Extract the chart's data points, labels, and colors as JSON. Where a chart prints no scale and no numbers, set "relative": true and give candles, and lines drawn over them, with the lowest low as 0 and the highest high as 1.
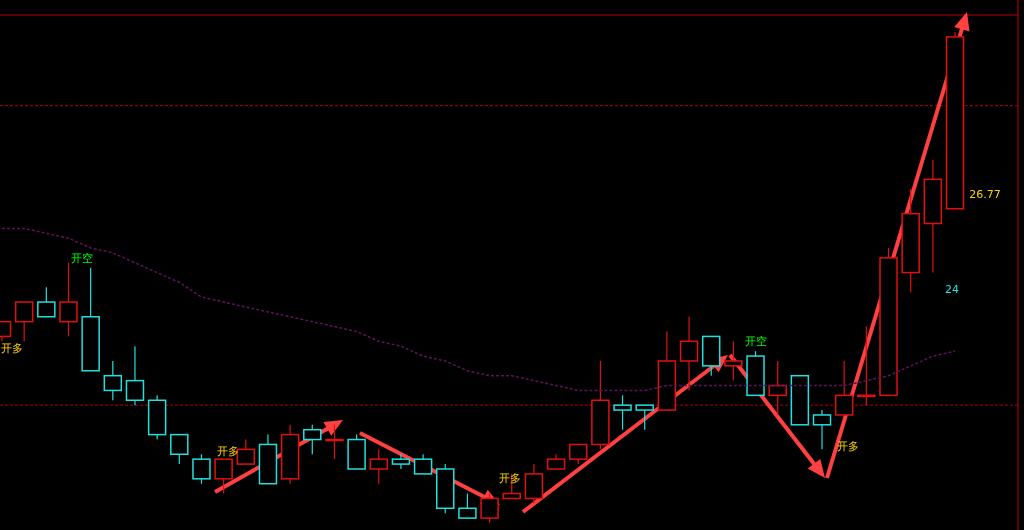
{
  "chart_data": {
    "type": "candlestick",
    "relative": true,
    "categories": [
      null,
      null,
      null,
      null,
      null,
      null,
      null,
      null,
      null,
      null,
      null,
      null,
      null,
      null,
      null,
      null,
      null,
      null,
      null,
      null,
      null,
      null,
      null,
      null,
      null,
      null,
      null,
      null,
      null,
      null,
      null,
      null,
      null,
      null,
      null,
      null,
      null,
      null,
      null,
      null,
      null,
      null,
      null,
      null
    ],
    "ohlc": [
      [
        0.38,
        0.41,
        0.37,
        0.41
      ],
      [
        0.41,
        0.45,
        0.37,
        0.45
      ],
      [
        0.45,
        0.48,
        0.42,
        0.42
      ],
      [
        0.41,
        0.53,
        0.38,
        0.45
      ],
      [
        0.42,
        0.52,
        0.31,
        0.31
      ],
      [
        0.3,
        0.33,
        0.25,
        0.27
      ],
      [
        0.29,
        0.36,
        0.24,
        0.25
      ],
      [
        0.25,
        0.26,
        0.17,
        0.18
      ],
      [
        0.18,
        0.18,
        0.12,
        0.14
      ],
      [
        0.13,
        0.14,
        0.08,
        0.09
      ],
      [
        0.09,
        0.13,
        0.06,
        0.13
      ],
      [
        0.12,
        0.17,
        0.12,
        0.15
      ],
      [
        0.16,
        0.18,
        0.08,
        0.08
      ],
      [
        0.09,
        0.2,
        0.08,
        0.18
      ],
      [
        0.19,
        0.2,
        0.14,
        0.17
      ],
      [
        0.17,
        0.2,
        0.13,
        0.17
      ],
      [
        0.17,
        0.18,
        0.11,
        0.11
      ],
      [
        0.11,
        0.15,
        0.08,
        0.13
      ],
      [
        0.13,
        0.14,
        0.11,
        0.12
      ],
      [
        0.13,
        0.14,
        0.1,
        0.1
      ],
      [
        0.11,
        0.12,
        0.02,
        0.03
      ],
      [
        0.03,
        0.06,
        0.01,
        0.01
      ],
      [
        0.01,
        0.06,
        0.0,
        0.05
      ],
      [
        0.05,
        0.1,
        0.05,
        0.06
      ],
      [
        0.05,
        0.12,
        0.04,
        0.1
      ],
      [
        0.11,
        0.14,
        0.11,
        0.13
      ],
      [
        0.13,
        0.16,
        0.12,
        0.16
      ],
      [
        0.16,
        0.33,
        0.15,
        0.25
      ],
      [
        0.24,
        0.26,
        0.19,
        0.23
      ],
      [
        0.24,
        0.24,
        0.19,
        0.23
      ],
      [
        0.23,
        0.39,
        0.23,
        0.33
      ],
      [
        0.33,
        0.42,
        0.27,
        0.37
      ],
      [
        0.38,
        0.38,
        0.3,
        0.32
      ],
      [
        0.32,
        0.37,
        0.29,
        0.33
      ],
      [
        0.34,
        0.35,
        0.26,
        0.26
      ],
      [
        0.26,
        0.33,
        0.22,
        0.28
      ],
      [
        0.3,
        0.3,
        0.2,
        0.2
      ],
      [
        0.22,
        0.23,
        0.15,
        0.2
      ],
      [
        0.22,
        0.33,
        0.22,
        0.26
      ],
      [
        0.26,
        0.4,
        0.24,
        0.26
      ],
      [
        0.26,
        0.56,
        0.26,
        0.54
      ],
      [
        0.51,
        0.68,
        0.47,
        0.63
      ],
      [
        0.61,
        0.74,
        0.51,
        0.7
      ],
      [
        0.64,
        1,
        0.64,
        0.99
      ]
    ],
    "series": [
      {
        "type": "line",
        "color": "#5a145a",
        "values": [
          0.6,
          0.6,
          0.59,
          0.58,
          0.56,
          0.55,
          0.53,
          0.51,
          0.49,
          0.46,
          0.45,
          0.44,
          0.43,
          0.42,
          0.41,
          0.4,
          0.39,
          0.37,
          0.36,
          0.34,
          0.33,
          0.31,
          0.3,
          0.3,
          0.29,
          0.28,
          0.27,
          0.27,
          0.27,
          0.27,
          0.28,
          0.28,
          0.28,
          0.28,
          0.28,
          0.28,
          0.28,
          0.28,
          0.28,
          0.29,
          0.3,
          0.32,
          0.34,
          0.35
        ]
      }
    ],
    "line_style": "dashed",
    "ref_lines": [
      {
        "axis": "y",
        "value": 0.85,
        "color": "#b00000",
        "line_style": "dashed"
      },
      {
        "axis": "y",
        "value": 0.24,
        "color": "#b00000",
        "line_style": "dashed"
      }
    ],
    "annotations": [
      "开多",
      "开空",
      "开多",
      "开多",
      "开空",
      "开多",
      "26.77",
      "24"
    ]
  }
}
